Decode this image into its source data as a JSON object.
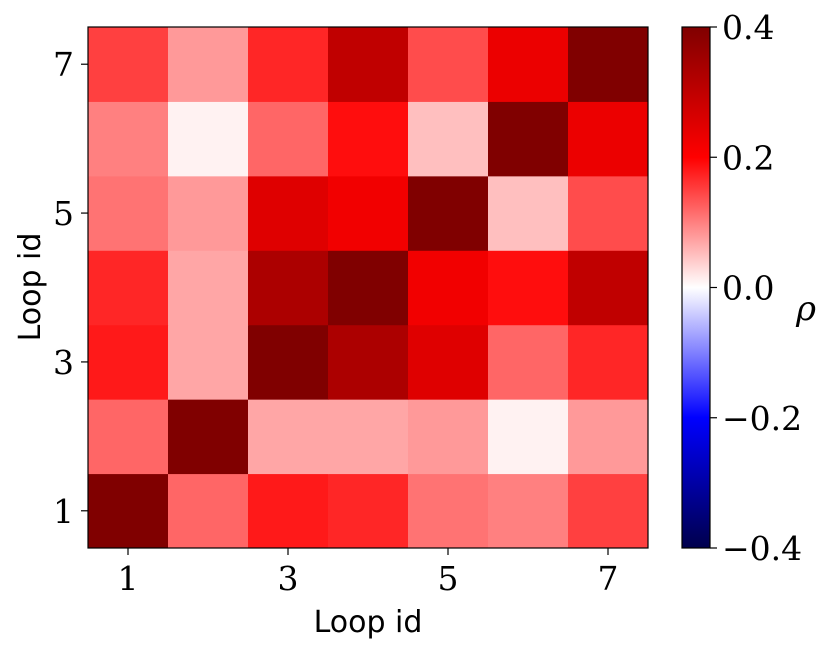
{
  "chart_data": {
    "type": "heatmap",
    "title": "",
    "xlabel": "Loop id",
    "ylabel": "Loop id",
    "x_categories": [
      1,
      2,
      3,
      4,
      5,
      6,
      7
    ],
    "y_categories": [
      1,
      2,
      3,
      4,
      5,
      6,
      7
    ],
    "x_tick_labels": [
      "1",
      "3",
      "5",
      "7"
    ],
    "y_tick_labels": [
      "1",
      "3",
      "5",
      "7"
    ],
    "values": [
      [
        0.4,
        0.12,
        0.18,
        0.17,
        0.11,
        0.1,
        0.15
      ],
      [
        0.12,
        0.4,
        0.07,
        0.07,
        0.08,
        0.01,
        0.08
      ],
      [
        0.18,
        0.07,
        0.4,
        0.33,
        0.25,
        0.12,
        0.17
      ],
      [
        0.17,
        0.07,
        0.33,
        0.4,
        0.22,
        0.19,
        0.3
      ],
      [
        0.11,
        0.08,
        0.25,
        0.22,
        0.4,
        0.05,
        0.14
      ],
      [
        0.1,
        0.01,
        0.12,
        0.19,
        0.05,
        0.4,
        0.23
      ],
      [
        0.15,
        0.08,
        0.17,
        0.3,
        0.14,
        0.23,
        0.4
      ]
    ],
    "colorscale": "seismic",
    "vmin": -0.4,
    "vmax": 0.4,
    "colorbar": {
      "label": "ρ",
      "ticks": [
        0.4,
        0.2,
        0.0,
        -0.2,
        -0.4
      ],
      "tick_labels": [
        "0.4",
        "0.2",
        "0.0",
        "−0.2",
        "−0.4"
      ]
    }
  }
}
